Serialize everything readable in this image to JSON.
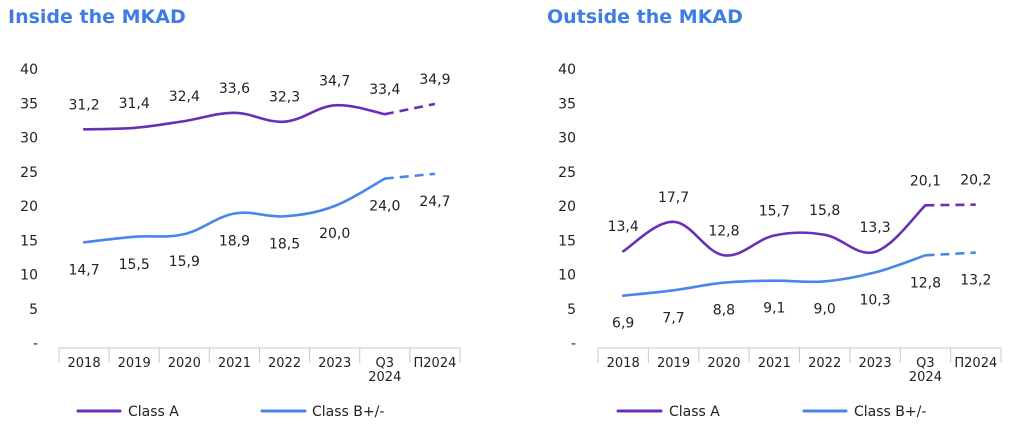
{
  "chart_data": [
    {
      "type": "line",
      "title": "Inside the MKAD",
      "categories": [
        "2018",
        "2019",
        "2020",
        "2021",
        "2022",
        "2023",
        "Q3\n2024",
        "П2024"
      ],
      "ylim": [
        0,
        40
      ],
      "yticks": [
        "-",
        "5",
        "10",
        "15",
        "20",
        "25",
        "30",
        "35",
        "40"
      ],
      "grid": false,
      "legend_position": "bottom",
      "series": [
        {
          "name": "Class A",
          "color": "#6a2fb7",
          "values": [
            31.2,
            31.4,
            32.4,
            33.6,
            32.3,
            34.7,
            33.4,
            34.9
          ],
          "labels": [
            "31,2",
            "31,4",
            "32,4",
            "33,6",
            "32,3",
            "34,7",
            "33,4",
            "34,9"
          ],
          "label_position": "above",
          "forecast_last": true
        },
        {
          "name": "Class B+/-",
          "color": "#4a86ea",
          "values": [
            14.7,
            15.5,
            15.9,
            18.9,
            18.5,
            20.0,
            24.0,
            24.7
          ],
          "labels": [
            "14,7",
            "15,5",
            "15,9",
            "18,9",
            "18,5",
            "20,0",
            "24,0",
            "24,7"
          ],
          "label_position": "below",
          "forecast_last": true
        }
      ]
    },
    {
      "type": "line",
      "title": "Outside the MKAD",
      "categories": [
        "2018",
        "2019",
        "2020",
        "2021",
        "2022",
        "2023",
        "Q3\n2024",
        "П2024"
      ],
      "ylim": [
        0,
        40
      ],
      "yticks": [
        "-",
        "5",
        "10",
        "15",
        "20",
        "25",
        "30",
        "35",
        "40"
      ],
      "grid": false,
      "legend_position": "bottom",
      "series": [
        {
          "name": "Class A",
          "color": "#6a2fb7",
          "values": [
            13.4,
            17.7,
            12.8,
            15.7,
            15.8,
            13.3,
            20.1,
            20.2
          ],
          "labels": [
            "13,4",
            "17,7",
            "12,8",
            "15,7",
            "15,8",
            "13,3",
            "20,1",
            "20,2"
          ],
          "label_position": "above",
          "forecast_last": true
        },
        {
          "name": "Class B+/-",
          "color": "#4a86ea",
          "values": [
            6.9,
            7.7,
            8.8,
            9.1,
            9.0,
            10.3,
            12.8,
            13.2
          ],
          "labels": [
            "6,9",
            "7,7",
            "8,8",
            "9,1",
            "9,0",
            "10,3",
            "12,8",
            "13,2"
          ],
          "label_position": "below",
          "forecast_last": true
        }
      ]
    }
  ]
}
